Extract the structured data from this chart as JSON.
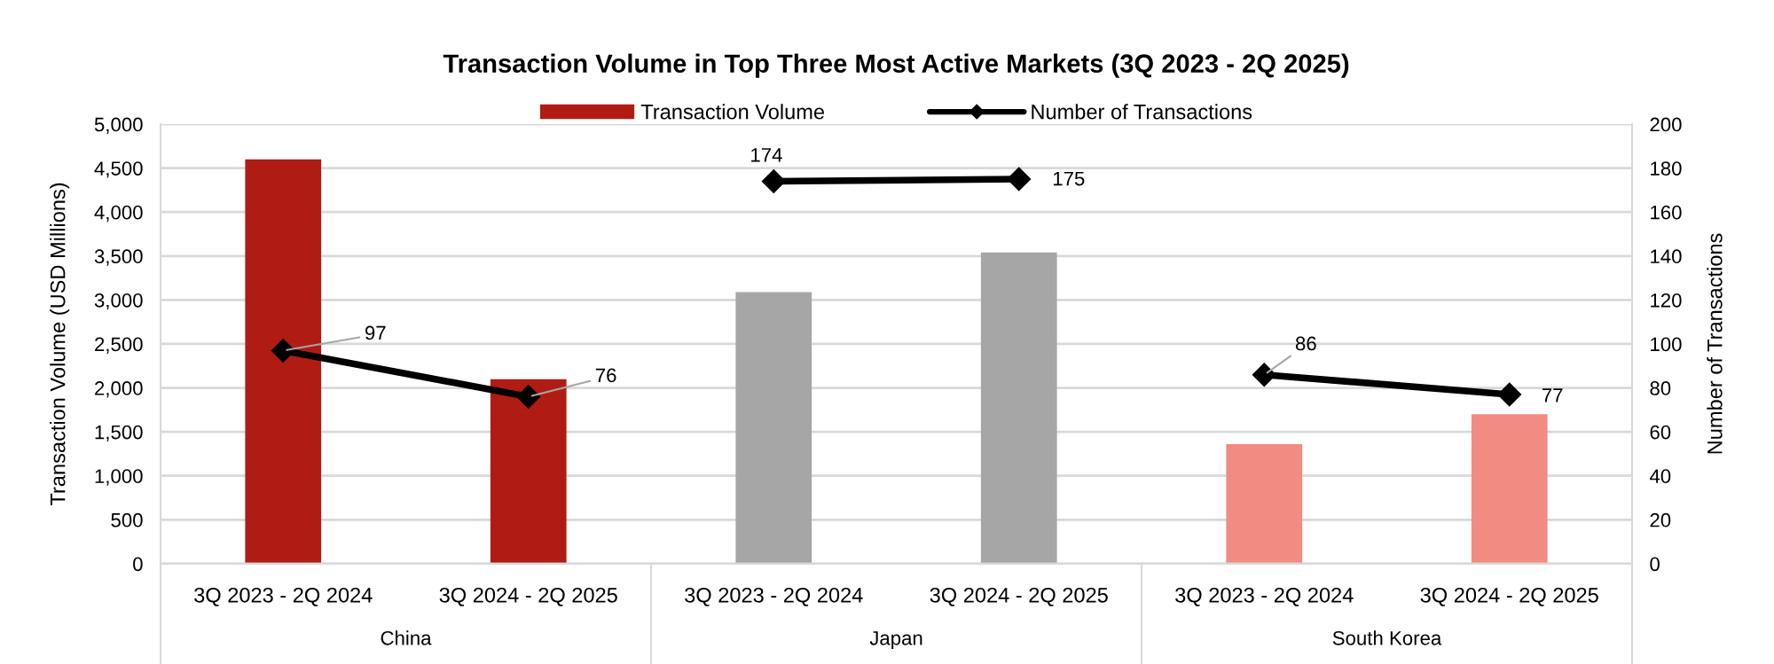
{
  "chart_data": {
    "type": "bar",
    "title": "Transaction Volume in Top Three Most Active Markets (3Q 2023 - 2Q 2025)",
    "categories": [
      "3Q 2023 - 2Q 2024",
      "3Q 2024 - 2Q 2025",
      "3Q 2023 - 2Q 2024",
      "3Q 2024 - 2Q 2025",
      "3Q 2023 - 2Q 2024",
      "3Q 2024 - 2Q 2025"
    ],
    "series": [
      {
        "name": "Transaction Volume",
        "colors": [
          "#b01c14",
          "#b01c14",
          "#a6a6a6",
          "#a6a6a6",
          "#f28b82",
          "#f28b82"
        ],
        "values": [
          4600,
          2100,
          3090,
          3540,
          1360,
          1700
        ]
      },
      {
        "name": "Number of Transactions",
        "type": "line",
        "axis": "y2",
        "color": "#000000",
        "values": [
          97,
          76,
          null,
          null,
          null,
          null
        ],
        "value_labels": [
          "97",
          "76",
          null,
          null,
          null,
          null
        ]
      },
      {
        "type": "line",
        "axis": "y2",
        "color": "#000000",
        "values": [
          null,
          null,
          174,
          175,
          null,
          null
        ],
        "value_labels": [
          null,
          null,
          "174",
          "175",
          null,
          null
        ]
      },
      {
        "type": "line",
        "axis": "y2",
        "color": "#000000",
        "values": [
          null,
          null,
          null,
          null,
          86,
          77
        ],
        "value_labels": [
          null,
          null,
          null,
          null,
          "86",
          "77"
        ]
      }
    ],
    "ylabel": "Transaction Volume (USD Millions)",
    "y2label": "Number of Transactions",
    "ylim": [
      0,
      5000
    ],
    "yticks": [
      0,
      500,
      {
        "value": 1000,
        "label": "1,000"
      },
      {
        "value": 1500,
        "label": "1,500"
      },
      {
        "value": 2000,
        "label": "2,000"
      },
      {
        "value": 2500,
        "label": "2,500"
      },
      {
        "value": 3000,
        "label": "3,000"
      },
      {
        "value": 3500,
        "label": "3,500"
      },
      {
        "value": 4000,
        "label": "4,000"
      },
      {
        "value": 4500,
        "label": "4,500"
      },
      {
        "value": 5000,
        "label": "5,000"
      }
    ],
    "y2lim": [
      0,
      200
    ],
    "y2ticks": [
      0,
      20,
      40,
      60,
      80,
      100,
      120,
      140,
      160,
      180,
      200
    ],
    "annotations": [
      "China",
      "Japan",
      "South Korea"
    ],
    "grid": "y",
    "legend": "top",
    "marker": "diamond",
    "line_style": "solid"
  }
}
